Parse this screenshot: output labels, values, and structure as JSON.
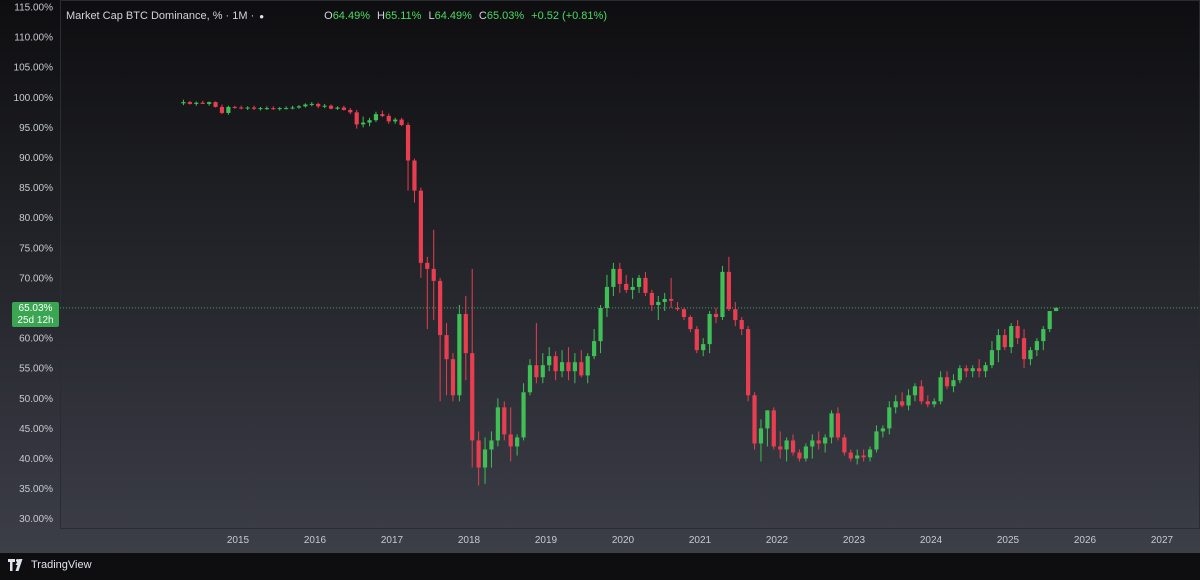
{
  "header": {
    "title": "Market Cap BTC Dominance, % · 1M ·",
    "ohlc": [
      {
        "label": "O",
        "value": "64.49%"
      },
      {
        "label": "H",
        "value": "65.11%"
      },
      {
        "label": "L",
        "value": "64.49%"
      },
      {
        "label": "C",
        "value": "65.03%"
      },
      {
        "label": "",
        "value": "+0.52 (+0.81%)"
      }
    ]
  },
  "price_tag": {
    "value": "65.03%",
    "countdown": "25d 12h"
  },
  "brand": "TradingView",
  "colors": {
    "up": "#26a69a",
    "up_candle": "#3fbf56",
    "down_candle": "#e83e50",
    "background_top": "#0e0e10",
    "background_bottom": "#3c3e48",
    "price_line": "#3aa651"
  },
  "chart_data": {
    "type": "candlestick",
    "y_ticks": [
      "115.00%",
      "110.00%",
      "105.00%",
      "100.00%",
      "95.00%",
      "90.00%",
      "85.00%",
      "80.00%",
      "75.00%",
      "70.00%",
      "65.00%",
      "60.00%",
      "55.00%",
      "50.00%",
      "45.00%",
      "40.00%",
      "35.00%",
      "30.00%"
    ],
    "x_ticks": [
      "2015",
      "2016",
      "2017",
      "2018",
      "2019",
      "2020",
      "2021",
      "2022",
      "2023",
      "2024",
      "2025",
      "2026",
      "2027"
    ],
    "ylim": [
      30,
      115
    ],
    "last_close": 65.03,
    "grid": false,
    "candles": [
      {
        "t": "2014-04",
        "o": 99.0,
        "h": 99.6,
        "l": 98.7,
        "c": 99.2
      },
      {
        "t": "2014-05",
        "o": 99.2,
        "h": 99.4,
        "l": 98.8,
        "c": 98.9
      },
      {
        "t": "2014-06",
        "o": 98.9,
        "h": 99.3,
        "l": 98.6,
        "c": 99.1
      },
      {
        "t": "2014-07",
        "o": 99.1,
        "h": 99.4,
        "l": 98.9,
        "c": 98.9
      },
      {
        "t": "2014-08",
        "o": 98.9,
        "h": 99.3,
        "l": 98.6,
        "c": 99.2
      },
      {
        "t": "2014-09",
        "o": 99.2,
        "h": 99.3,
        "l": 98.3,
        "c": 98.4
      },
      {
        "t": "2014-10",
        "o": 98.4,
        "h": 98.8,
        "l": 97.2,
        "c": 97.4
      },
      {
        "t": "2014-11",
        "o": 97.4,
        "h": 98.6,
        "l": 97.1,
        "c": 98.4
      },
      {
        "t": "2014-12",
        "o": 98.4,
        "h": 98.6,
        "l": 98.1,
        "c": 98.3
      },
      {
        "t": "2015-01",
        "o": 98.3,
        "h": 98.6,
        "l": 98.0,
        "c": 98.2
      },
      {
        "t": "2015-02",
        "o": 98.2,
        "h": 98.5,
        "l": 97.9,
        "c": 98.3
      },
      {
        "t": "2015-03",
        "o": 98.3,
        "h": 98.6,
        "l": 97.9,
        "c": 98.1
      },
      {
        "t": "2015-04",
        "o": 98.1,
        "h": 98.4,
        "l": 97.8,
        "c": 98.2
      },
      {
        "t": "2015-05",
        "o": 98.2,
        "h": 98.5,
        "l": 97.9,
        "c": 98.2
      },
      {
        "t": "2015-06",
        "o": 98.2,
        "h": 98.5,
        "l": 97.9,
        "c": 98.1
      },
      {
        "t": "2015-07",
        "o": 98.1,
        "h": 98.4,
        "l": 97.8,
        "c": 98.2
      },
      {
        "t": "2015-08",
        "o": 98.2,
        "h": 98.5,
        "l": 98.0,
        "c": 98.2
      },
      {
        "t": "2015-09",
        "o": 98.2,
        "h": 98.6,
        "l": 98.0,
        "c": 98.3
      },
      {
        "t": "2015-10",
        "o": 98.3,
        "h": 98.7,
        "l": 98.1,
        "c": 98.5
      },
      {
        "t": "2015-11",
        "o": 98.5,
        "h": 99.0,
        "l": 98.3,
        "c": 98.8
      },
      {
        "t": "2015-12",
        "o": 98.8,
        "h": 99.2,
        "l": 98.5,
        "c": 98.9
      },
      {
        "t": "2016-01",
        "o": 98.9,
        "h": 99.1,
        "l": 98.2,
        "c": 98.5
      },
      {
        "t": "2016-02",
        "o": 98.5,
        "h": 98.9,
        "l": 98.2,
        "c": 98.6
      },
      {
        "t": "2016-03",
        "o": 98.6,
        "h": 98.8,
        "l": 98.0,
        "c": 98.1
      },
      {
        "t": "2016-04",
        "o": 98.1,
        "h": 98.5,
        "l": 97.9,
        "c": 98.3
      },
      {
        "t": "2016-05",
        "o": 98.3,
        "h": 98.6,
        "l": 97.8,
        "c": 97.9
      },
      {
        "t": "2016-06",
        "o": 97.9,
        "h": 98.2,
        "l": 97.2,
        "c": 97.5
      },
      {
        "t": "2016-07",
        "o": 97.5,
        "h": 97.9,
        "l": 94.8,
        "c": 95.5
      },
      {
        "t": "2016-08",
        "o": 95.5,
        "h": 96.8,
        "l": 95.0,
        "c": 95.8
      },
      {
        "t": "2016-09",
        "o": 95.8,
        "h": 96.6,
        "l": 95.2,
        "c": 96.2
      },
      {
        "t": "2016-10",
        "o": 96.2,
        "h": 97.6,
        "l": 95.9,
        "c": 97.2
      },
      {
        "t": "2016-11",
        "o": 97.2,
        "h": 97.8,
        "l": 96.7,
        "c": 96.9
      },
      {
        "t": "2016-12",
        "o": 96.9,
        "h": 97.3,
        "l": 95.6,
        "c": 96.0
      },
      {
        "t": "2017-01",
        "o": 96.0,
        "h": 96.6,
        "l": 95.6,
        "c": 96.3
      },
      {
        "t": "2017-02",
        "o": 96.3,
        "h": 96.6,
        "l": 95.2,
        "c": 95.4
      },
      {
        "t": "2017-03",
        "o": 95.4,
        "h": 95.8,
        "l": 84.5,
        "c": 89.5
      },
      {
        "t": "2017-04",
        "o": 89.5,
        "h": 89.8,
        "l": 82.5,
        "c": 84.5
      },
      {
        "t": "2017-05",
        "o": 84.5,
        "h": 85.0,
        "l": 70.0,
        "c": 72.5
      },
      {
        "t": "2017-06",
        "o": 72.5,
        "h": 73.5,
        "l": 61.5,
        "c": 71.5
      },
      {
        "t": "2017-07",
        "o": 71.5,
        "h": 78.0,
        "l": 63.0,
        "c": 69.5
      },
      {
        "t": "2017-08",
        "o": 69.5,
        "h": 70.0,
        "l": 49.5,
        "c": 60.5
      },
      {
        "t": "2017-09",
        "o": 60.5,
        "h": 62.5,
        "l": 50.5,
        "c": 56.5
      },
      {
        "t": "2017-10",
        "o": 56.5,
        "h": 57.5,
        "l": 49.5,
        "c": 50.5
      },
      {
        "t": "2017-11",
        "o": 50.5,
        "h": 65.5,
        "l": 49.5,
        "c": 64.0
      },
      {
        "t": "2017-12",
        "o": 64.0,
        "h": 67.0,
        "l": 53.0,
        "c": 57.5
      },
      {
        "t": "2018-01",
        "o": 57.5,
        "h": 71.5,
        "l": 38.5,
        "c": 43.0
      },
      {
        "t": "2018-02",
        "o": 43.0,
        "h": 44.5,
        "l": 35.5,
        "c": 38.5
      },
      {
        "t": "2018-03",
        "o": 38.5,
        "h": 43.5,
        "l": 35.8,
        "c": 41.5
      },
      {
        "t": "2018-04",
        "o": 41.5,
        "h": 44.5,
        "l": 38.5,
        "c": 43.0
      },
      {
        "t": "2018-05",
        "o": 43.0,
        "h": 50.0,
        "l": 42.0,
        "c": 48.5
      },
      {
        "t": "2018-06",
        "o": 48.5,
        "h": 49.5,
        "l": 43.0,
        "c": 44.0
      },
      {
        "t": "2018-07",
        "o": 44.0,
        "h": 48.5,
        "l": 39.5,
        "c": 42.0
      },
      {
        "t": "2018-08",
        "o": 42.0,
        "h": 44.0,
        "l": 40.5,
        "c": 43.5
      },
      {
        "t": "2018-09",
        "o": 43.5,
        "h": 52.5,
        "l": 43.0,
        "c": 51.0
      },
      {
        "t": "2018-10",
        "o": 51.0,
        "h": 56.5,
        "l": 50.5,
        "c": 55.5
      },
      {
        "t": "2018-11",
        "o": 55.5,
        "h": 62.5,
        "l": 52.5,
        "c": 53.5
      },
      {
        "t": "2018-12",
        "o": 53.5,
        "h": 57.5,
        "l": 52.5,
        "c": 55.5
      },
      {
        "t": "2019-01",
        "o": 55.5,
        "h": 58.5,
        "l": 54.5,
        "c": 57.0
      },
      {
        "t": "2019-02",
        "o": 57.0,
        "h": 57.8,
        "l": 53.0,
        "c": 54.5
      },
      {
        "t": "2019-03",
        "o": 54.5,
        "h": 58.0,
        "l": 53.5,
        "c": 56.0
      },
      {
        "t": "2019-04",
        "o": 56.0,
        "h": 58.5,
        "l": 53.0,
        "c": 54.5
      },
      {
        "t": "2019-05",
        "o": 54.5,
        "h": 57.5,
        "l": 52.5,
        "c": 56.0
      },
      {
        "t": "2019-06",
        "o": 56.0,
        "h": 58.0,
        "l": 53.5,
        "c": 53.8
      },
      {
        "t": "2019-07",
        "o": 53.8,
        "h": 57.5,
        "l": 52.5,
        "c": 57.0
      },
      {
        "t": "2019-08",
        "o": 57.0,
        "h": 61.5,
        "l": 56.5,
        "c": 59.5
      },
      {
        "t": "2019-09",
        "o": 59.5,
        "h": 65.5,
        "l": 57.5,
        "c": 65.0
      },
      {
        "t": "2019-10",
        "o": 65.0,
        "h": 70.5,
        "l": 63.5,
        "c": 68.5
      },
      {
        "t": "2019-11",
        "o": 68.5,
        "h": 72.5,
        "l": 67.0,
        "c": 71.5
      },
      {
        "t": "2019-12",
        "o": 71.5,
        "h": 72.5,
        "l": 67.5,
        "c": 69.0
      },
      {
        "t": "2020-01",
        "o": 69.0,
        "h": 70.5,
        "l": 67.5,
        "c": 68.0
      },
      {
        "t": "2020-02",
        "o": 68.0,
        "h": 70.0,
        "l": 66.5,
        "c": 68.5
      },
      {
        "t": "2020-03",
        "o": 68.5,
        "h": 70.5,
        "l": 67.5,
        "c": 70.0
      },
      {
        "t": "2020-04",
        "o": 70.0,
        "h": 71.0,
        "l": 67.0,
        "c": 67.5
      },
      {
        "t": "2020-05",
        "o": 67.5,
        "h": 68.0,
        "l": 64.5,
        "c": 65.5
      },
      {
        "t": "2020-06",
        "o": 65.5,
        "h": 67.0,
        "l": 63.0,
        "c": 66.0
      },
      {
        "t": "2020-07",
        "o": 66.0,
        "h": 67.5,
        "l": 64.5,
        "c": 66.5
      },
      {
        "t": "2020-08",
        "o": 66.5,
        "h": 70.0,
        "l": 65.0,
        "c": 66.2
      },
      {
        "t": "2020-09",
        "o": 65.0,
        "h": 66.0,
        "l": 64.5,
        "c": 64.8
      },
      {
        "t": "2020-10",
        "o": 64.8,
        "h": 65.0,
        "l": 63.0,
        "c": 63.5
      },
      {
        "t": "2020-11",
        "o": 63.5,
        "h": 63.8,
        "l": 61.0,
        "c": 61.5
      },
      {
        "t": "2020-12",
        "o": 61.5,
        "h": 62.0,
        "l": 57.5,
        "c": 58.0
      },
      {
        "t": "2021-01",
        "o": 58.0,
        "h": 60.0,
        "l": 57.0,
        "c": 59.0
      },
      {
        "t": "2021-02",
        "o": 59.0,
        "h": 64.5,
        "l": 57.5,
        "c": 64.0
      },
      {
        "t": "2021-03",
        "o": 64.0,
        "h": 65.0,
        "l": 62.5,
        "c": 63.5
      },
      {
        "t": "2021-04",
        "o": 63.5,
        "h": 72.0,
        "l": 63.0,
        "c": 71.0
      },
      {
        "t": "2021-05",
        "o": 71.0,
        "h": 73.5,
        "l": 64.5,
        "c": 64.8
      },
      {
        "t": "2021-06",
        "o": 64.8,
        "h": 66.0,
        "l": 62.0,
        "c": 63.0
      },
      {
        "t": "2021-07",
        "o": 63.0,
        "h": 63.5,
        "l": 60.5,
        "c": 61.5
      },
      {
        "t": "2021-08",
        "o": 61.5,
        "h": 62.0,
        "l": 49.5,
        "c": 50.5
      },
      {
        "t": "2021-09",
        "o": 50.5,
        "h": 51.0,
        "l": 41.5,
        "c": 42.5
      },
      {
        "t": "2021-10",
        "o": 42.5,
        "h": 46.5,
        "l": 39.5,
        "c": 45.0
      },
      {
        "t": "2021-11",
        "o": 45.0,
        "h": 48.0,
        "l": 42.0,
        "c": 48.0
      },
      {
        "t": "2021-12",
        "o": 48.0,
        "h": 48.5,
        "l": 41.5,
        "c": 42.0
      },
      {
        "t": "2022-01",
        "o": 42.0,
        "h": 44.5,
        "l": 40.0,
        "c": 41.5
      },
      {
        "t": "2022-02",
        "o": 41.5,
        "h": 43.5,
        "l": 39.5,
        "c": 43.0
      },
      {
        "t": "2022-03",
        "o": 43.0,
        "h": 44.0,
        "l": 40.5,
        "c": 41.0
      },
      {
        "t": "2022-04",
        "o": 41.0,
        "h": 41.5,
        "l": 39.5,
        "c": 40.0
      },
      {
        "t": "2022-05",
        "o": 40.0,
        "h": 42.5,
        "l": 39.5,
        "c": 42.0
      },
      {
        "t": "2022-06",
        "o": 42.0,
        "h": 44.0,
        "l": 40.0,
        "c": 43.0
      },
      {
        "t": "2022-07",
        "o": 43.0,
        "h": 44.5,
        "l": 41.5,
        "c": 42.5
      },
      {
        "t": "2022-08",
        "o": 42.5,
        "h": 44.0,
        "l": 41.0,
        "c": 43.5
      },
      {
        "t": "2022-09",
        "o": 43.5,
        "h": 48.0,
        "l": 42.5,
        "c": 47.5
      },
      {
        "t": "2022-10",
        "o": 47.5,
        "h": 48.5,
        "l": 43.0,
        "c": 43.5
      },
      {
        "t": "2022-11",
        "o": 43.5,
        "h": 44.0,
        "l": 40.5,
        "c": 41.0
      },
      {
        "t": "2022-12",
        "o": 41.0,
        "h": 41.5,
        "l": 39.5,
        "c": 40.0
      },
      {
        "t": "2023-01",
        "o": 40.0,
        "h": 41.5,
        "l": 39.0,
        "c": 40.5
      },
      {
        "t": "2023-02",
        "o": 40.5,
        "h": 41.5,
        "l": 39.5,
        "c": 40.2
      },
      {
        "t": "2023-03",
        "o": 40.2,
        "h": 42.0,
        "l": 39.5,
        "c": 41.5
      },
      {
        "t": "2023-04",
        "o": 41.5,
        "h": 45.5,
        "l": 41.0,
        "c": 44.5
      },
      {
        "t": "2023-05",
        "o": 44.5,
        "h": 45.5,
        "l": 43.5,
        "c": 45.0
      },
      {
        "t": "2023-06",
        "o": 45.0,
        "h": 49.5,
        "l": 44.0,
        "c": 48.5
      },
      {
        "t": "2023-07",
        "o": 48.5,
        "h": 50.5,
        "l": 47.5,
        "c": 49.5
      },
      {
        "t": "2023-08",
        "o": 49.5,
        "h": 51.0,
        "l": 48.5,
        "c": 48.8
      },
      {
        "t": "2023-09",
        "o": 48.8,
        "h": 51.5,
        "l": 48.0,
        "c": 50.5
      },
      {
        "t": "2023-10",
        "o": 50.5,
        "h": 52.5,
        "l": 49.5,
        "c": 52.0
      },
      {
        "t": "2023-11",
        "o": 52.0,
        "h": 53.0,
        "l": 49.0,
        "c": 49.5
      },
      {
        "t": "2023-12",
        "o": 49.5,
        "h": 50.5,
        "l": 48.5,
        "c": 49.0
      },
      {
        "t": "2024-01",
        "o": 49.0,
        "h": 50.0,
        "l": 48.5,
        "c": 49.5
      },
      {
        "t": "2024-02",
        "o": 49.5,
        "h": 54.5,
        "l": 49.0,
        "c": 53.5
      },
      {
        "t": "2024-03",
        "o": 53.5,
        "h": 54.5,
        "l": 51.5,
        "c": 52.0
      },
      {
        "t": "2024-04",
        "o": 52.0,
        "h": 54.0,
        "l": 51.0,
        "c": 53.0
      },
      {
        "t": "2024-05",
        "o": 53.0,
        "h": 55.5,
        "l": 52.5,
        "c": 55.0
      },
      {
        "t": "2024-06",
        "o": 55.0,
        "h": 55.5,
        "l": 53.5,
        "c": 54.5
      },
      {
        "t": "2024-07",
        "o": 54.5,
        "h": 55.5,
        "l": 53.5,
        "c": 55.0
      },
      {
        "t": "2024-08",
        "o": 55.0,
        "h": 56.5,
        "l": 53.5,
        "c": 54.5
      },
      {
        "t": "2024-09",
        "o": 54.5,
        "h": 56.0,
        "l": 53.5,
        "c": 55.5
      },
      {
        "t": "2024-10",
        "o": 55.5,
        "h": 59.5,
        "l": 55.0,
        "c": 58.0
      },
      {
        "t": "2024-11",
        "o": 58.0,
        "h": 61.5,
        "l": 56.0,
        "c": 60.5
      },
      {
        "t": "2024-12",
        "o": 60.5,
        "h": 61.5,
        "l": 58.0,
        "c": 58.5
      },
      {
        "t": "2025-01",
        "o": 58.5,
        "h": 62.5,
        "l": 57.5,
        "c": 62.0
      },
      {
        "t": "2025-02",
        "o": 62.0,
        "h": 63.0,
        "l": 59.0,
        "c": 60.0
      },
      {
        "t": "2025-03",
        "o": 60.0,
        "h": 61.5,
        "l": 55.0,
        "c": 56.5
      },
      {
        "t": "2025-04",
        "o": 56.5,
        "h": 58.5,
        "l": 55.5,
        "c": 58.0
      },
      {
        "t": "2025-05",
        "o": 58.0,
        "h": 60.0,
        "l": 57.0,
        "c": 59.5
      },
      {
        "t": "2025-06",
        "o": 59.5,
        "h": 62.0,
        "l": 58.0,
        "c": 61.5
      },
      {
        "t": "2025-07",
        "o": 61.5,
        "h": 64.5,
        "l": 61.0,
        "c": 64.5
      },
      {
        "t": "2025-08",
        "o": 64.49,
        "h": 65.11,
        "l": 64.49,
        "c": 65.03
      }
    ]
  }
}
